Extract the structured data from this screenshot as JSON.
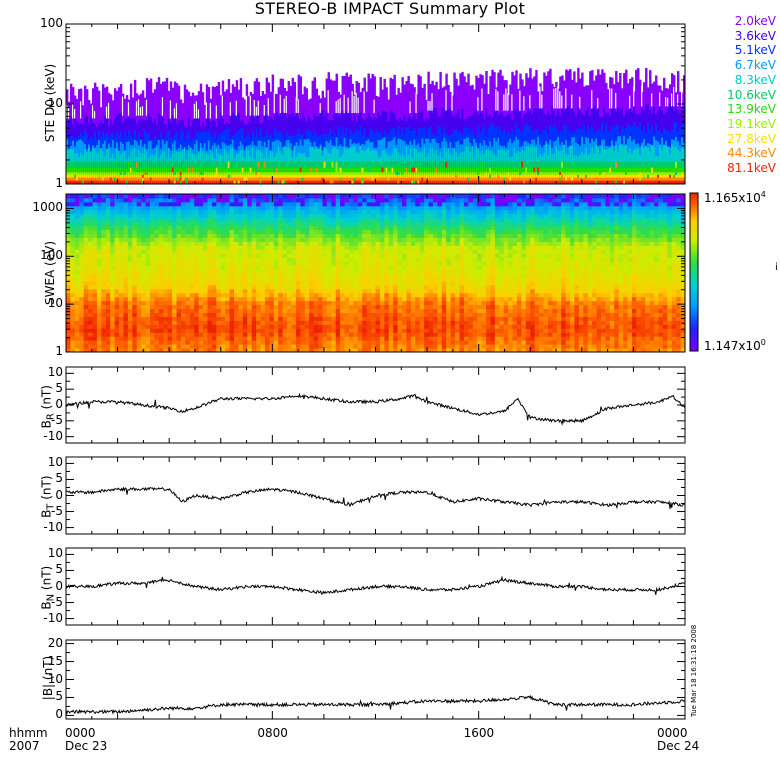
{
  "title": "STEREO-B IMPACT Summary Plot",
  "timestamp": "Tue Mar 18 16:31:18 2008",
  "x_axis": {
    "row_label": "hhmm",
    "year": "2007",
    "ticks": [
      {
        "hours": 0,
        "label": "0000",
        "date": "Dec 23"
      },
      {
        "hours": 8,
        "label": "0800",
        "date": ""
      },
      {
        "hours": 16,
        "label": "1600",
        "date": ""
      },
      {
        "hours": 24,
        "label": "0000",
        "date": "Dec 24"
      }
    ]
  },
  "colorbar": {
    "max_label": "1.165x10",
    "max_exp": "4",
    "min_label": "1.147x10",
    "min_exp": "0"
  },
  "ste_legend": [
    {
      "label": "2.0keV",
      "color": "#8a00ff"
    },
    {
      "label": "3.6keV",
      "color": "#4400ee"
    },
    {
      "label": "5.1keV",
      "color": "#0033ff"
    },
    {
      "label": "6.7keV",
      "color": "#0099ff"
    },
    {
      "label": "8.3keV",
      "color": "#00cccc"
    },
    {
      "label": "10.6keV",
      "color": "#00cc66"
    },
    {
      "label": "13.9keV",
      "color": "#22dd00"
    },
    {
      "label": "19.1keV",
      "color": "#99ee00"
    },
    {
      "label": "27.8keV",
      "color": "#ffdd00"
    },
    {
      "label": "44.3keV",
      "color": "#ff8800"
    },
    {
      "label": "81.1keV",
      "color": "#ee2200"
    }
  ],
  "chart_data": [
    {
      "type": "line",
      "panel": "ste",
      "ylabel": "STE D0 (keV)",
      "yscale": "log",
      "ylim": [
        1,
        100
      ],
      "yticks": [
        "1",
        "10",
        "100"
      ],
      "xlim_hours": [
        0,
        24
      ],
      "series": [
        {
          "name": "2.0keV",
          "typical": [
            11,
            13,
            12,
            13,
            14,
            15,
            14,
            15,
            16,
            17,
            16,
            17
          ]
        },
        {
          "name": "3.6keV",
          "typical": [
            6,
            6.5,
            6,
            6.5,
            7,
            7,
            7,
            7.5,
            7.5,
            8,
            8,
            8.5
          ]
        },
        {
          "name": "5.1keV",
          "typical": [
            4,
            4,
            4,
            4.2,
            4.2,
            4.5,
            4.5,
            4.5,
            4.8,
            4.8,
            5,
            5
          ]
        },
        {
          "name": "6.7keV",
          "typical": [
            3,
            3,
            3,
            3,
            3.1,
            3.2,
            3.2,
            3.2,
            3.3,
            3.3,
            3.4,
            3.4
          ]
        },
        {
          "name": "8.3keV",
          "typical": [
            2.4,
            2.4,
            2.4,
            2.4,
            2.5,
            2.5,
            2.5,
            2.5,
            2.5,
            2.6,
            2.6,
            2.6
          ]
        },
        {
          "name": "10.6keV",
          "typical": [
            1.9,
            1.9,
            1.9,
            1.9,
            1.9,
            1.9,
            1.9,
            1.9,
            1.9,
            1.9,
            1.9,
            1.9
          ]
        },
        {
          "name": "13.9keV",
          "typical": [
            1.6,
            1.6,
            1.6,
            1.6,
            1.6,
            1.6,
            1.6,
            1.6,
            1.6,
            1.6,
            1.6,
            1.6
          ]
        },
        {
          "name": "19.1keV",
          "typical": [
            1.4,
            1.4,
            1.4,
            1.4,
            1.4,
            1.4,
            1.4,
            1.4,
            1.4,
            1.4,
            1.4,
            1.4
          ]
        },
        {
          "name": "27.8keV",
          "typical": [
            1.3,
            1.3,
            1.3,
            1.3,
            1.3,
            1.3,
            1.3,
            1.3,
            1.3,
            1.3,
            1.3,
            1.3
          ]
        },
        {
          "name": "44.3keV",
          "typical": [
            1.2,
            1.2,
            1.2,
            1.2,
            1.2,
            1.2,
            1.2,
            1.2,
            1.2,
            1.2,
            1.2,
            1.2
          ]
        },
        {
          "name": "81.1keV",
          "typical": [
            1.1,
            1.1,
            1.1,
            1.1,
            1.1,
            1.1,
            1.1,
            1.1,
            1.1,
            1.1,
            1.1,
            1.1
          ]
        }
      ]
    },
    {
      "type": "heatmap",
      "panel": "swea",
      "ylabel": "SWEA (eV)",
      "yscale": "log",
      "ylim": [
        1,
        2000
      ],
      "yticks": [
        "1",
        "10",
        "100",
        "1000"
      ],
      "xlim_hours": [
        0,
        24
      ],
      "zscale": "log",
      "zlim": [
        1.147,
        11650
      ],
      "profile_energy_eV": [
        1,
        3,
        10,
        25,
        60,
        150,
        400,
        900,
        1500,
        2000
      ],
      "profile_log10_counts": [
        3.6,
        3.9,
        3.7,
        3.2,
        3.0,
        2.9,
        2.2,
        1.5,
        1.0,
        0.6
      ]
    },
    {
      "type": "line",
      "panel": "br",
      "ylabel": "B_R (nT)",
      "ylim": [
        -12,
        12
      ],
      "yticks": [
        "10",
        "5",
        "0",
        "-5",
        "-10"
      ],
      "x_hours": [
        0,
        1,
        2,
        3,
        4,
        4.5,
        5,
        6,
        7,
        8,
        9,
        10,
        11,
        12,
        13,
        13.5,
        14,
        15,
        16,
        17,
        17.5,
        18,
        19,
        20,
        21,
        22,
        23,
        23.5,
        24
      ],
      "y": [
        0,
        1,
        1,
        0,
        -1,
        -2,
        -1,
        2,
        2,
        2,
        3,
        2,
        1,
        1,
        2,
        3,
        1,
        -1,
        -3,
        -2,
        2,
        -4,
        -5,
        -5,
        -1,
        0,
        1,
        3,
        -1
      ]
    },
    {
      "type": "line",
      "panel": "bt",
      "ylabel": "B_T (nT)",
      "ylim": [
        -12,
        12
      ],
      "yticks": [
        "10",
        "5",
        "0",
        "-5",
        "-10"
      ],
      "x_hours": [
        0,
        1,
        2,
        3,
        4,
        4.5,
        5,
        6,
        7,
        8,
        9,
        10,
        11,
        12,
        13,
        14,
        15,
        16,
        17,
        18,
        19,
        20,
        21,
        22,
        23,
        24
      ],
      "y": [
        1,
        1,
        2,
        2,
        2,
        -2,
        0,
        -1,
        1,
        2,
        1,
        -1,
        -3,
        0,
        1,
        1,
        -2,
        -1,
        -2,
        -3,
        -2,
        -2,
        -3,
        -2,
        -2,
        -3
      ]
    },
    {
      "type": "line",
      "panel": "bn",
      "ylabel": "B_N (nT)",
      "ylim": [
        -12,
        12
      ],
      "yticks": [
        "10",
        "5",
        "0",
        "-5",
        "-10"
      ],
      "x_hours": [
        0,
        1,
        2,
        3,
        4,
        5,
        6,
        7,
        8,
        9,
        10,
        11,
        12,
        13,
        14,
        15,
        16,
        17,
        18,
        19,
        20,
        21,
        22,
        23,
        24
      ],
      "y": [
        0,
        0,
        1,
        1,
        2,
        0,
        -1,
        0,
        0,
        -1,
        -2,
        -1,
        0,
        0,
        -1,
        -1,
        0,
        2,
        1,
        0,
        0,
        -1,
        -1,
        -1,
        1
      ]
    },
    {
      "type": "line",
      "panel": "bmag",
      "ylabel": "|B| (nT)",
      "ylim": [
        -1,
        21
      ],
      "yticks": [
        "20",
        "15",
        "10",
        "5",
        "0"
      ],
      "x_hours": [
        0,
        2,
        4,
        5,
        6,
        8,
        10,
        12,
        14,
        16,
        18,
        19,
        20,
        22,
        24
      ],
      "y": [
        1,
        1,
        2,
        2,
        3,
        3,
        3,
        3,
        4,
        4,
        5,
        3,
        3,
        3,
        4
      ]
    }
  ]
}
